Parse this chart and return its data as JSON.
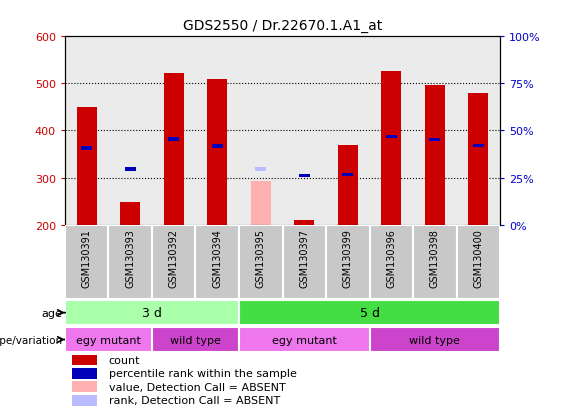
{
  "title": "GDS2550 / Dr.22670.1.A1_at",
  "samples": [
    "GSM130391",
    "GSM130393",
    "GSM130392",
    "GSM130394",
    "GSM130395",
    "GSM130397",
    "GSM130399",
    "GSM130396",
    "GSM130398",
    "GSM130400"
  ],
  "count_values": [
    450,
    248,
    521,
    509,
    null,
    209,
    370,
    527,
    496,
    480
  ],
  "count_absent": [
    null,
    null,
    null,
    null,
    293,
    null,
    null,
    null,
    null,
    null
  ],
  "rank_values": [
    363,
    318,
    382,
    367,
    null,
    305,
    null,
    387,
    381,
    368
  ],
  "rank_absent": [
    null,
    null,
    null,
    null,
    318,
    null,
    null,
    null,
    null,
    null
  ],
  "rank_values_present_blue": [
    null,
    null,
    null,
    null,
    null,
    null,
    307,
    null,
    null,
    null
  ],
  "ylim": [
    200,
    600
  ],
  "yticks": [
    200,
    300,
    400,
    500,
    600
  ],
  "y2lim": [
    0,
    100
  ],
  "y2ticks": [
    0,
    25,
    50,
    75,
    100
  ],
  "y2labels": [
    "0%",
    "25%",
    "50%",
    "75%",
    "100%"
  ],
  "bar_width": 0.45,
  "bar_color_red": "#CC0000",
  "bar_color_pink": "#FFB0B0",
  "rank_color_blue": "#0000BB",
  "rank_color_lightblue": "#BBBBFF",
  "grid_color": "black",
  "age_groups": [
    {
      "label": "3 d",
      "start": 0,
      "end": 4,
      "color": "#AAFFAA"
    },
    {
      "label": "5 d",
      "start": 4,
      "end": 10,
      "color": "#44DD44"
    }
  ],
  "genotype_groups": [
    {
      "label": "egy mutant",
      "start": 0,
      "end": 2,
      "color": "#EE77EE"
    },
    {
      "label": "wild type",
      "start": 2,
      "end": 4,
      "color": "#CC44CC"
    },
    {
      "label": "egy mutant",
      "start": 4,
      "end": 7,
      "color": "#EE77EE"
    },
    {
      "label": "wild type",
      "start": 7,
      "end": 10,
      "color": "#CC44CC"
    }
  ],
  "legend_items": [
    {
      "label": "count",
      "color": "#CC0000"
    },
    {
      "label": "percentile rank within the sample",
      "color": "#0000BB"
    },
    {
      "label": "value, Detection Call = ABSENT",
      "color": "#FFB0B0"
    },
    {
      "label": "rank, Detection Call = ABSENT",
      "color": "#BBBBFF"
    }
  ],
  "left_label_color": "#CC0000",
  "right_label_color": "#0000CC",
  "sample_box_color": "#C8C8C8"
}
